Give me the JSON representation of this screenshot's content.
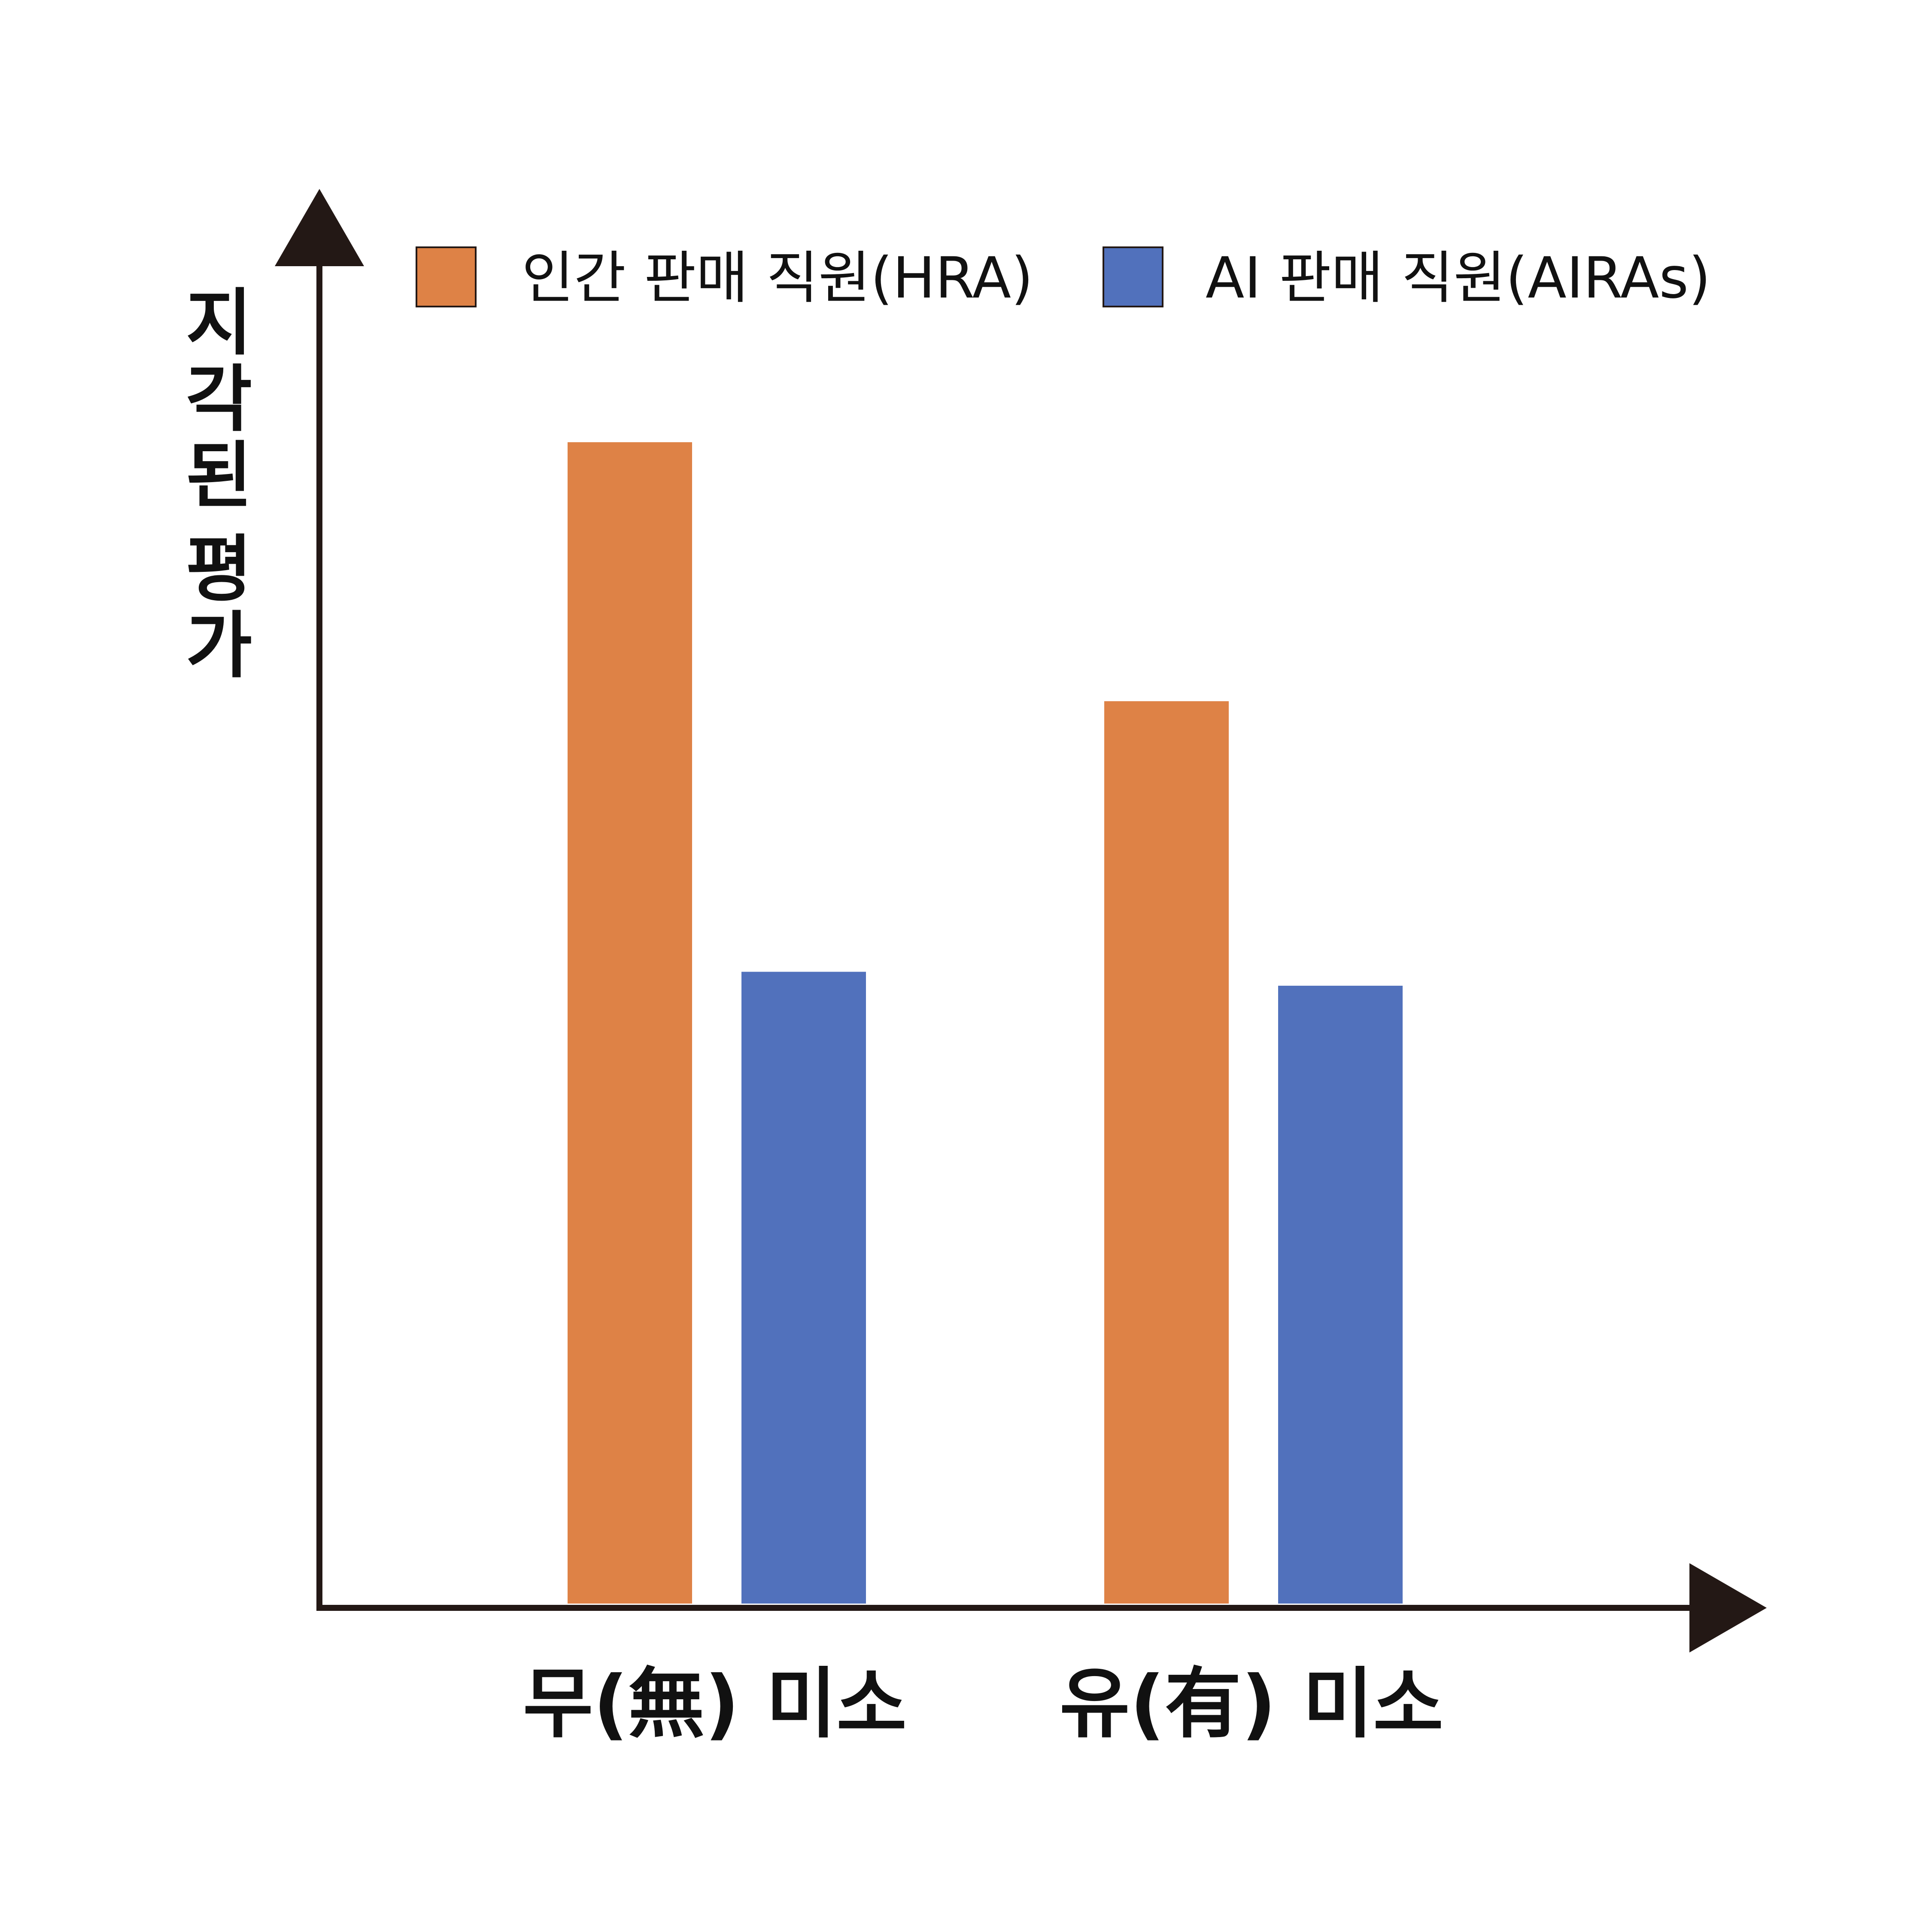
{
  "chart_data": {
    "type": "bar",
    "title": "",
    "ylabel": "지각된 평가",
    "xlabel": "",
    "categories": [
      "무(無) 미소",
      "유(有) 미소"
    ],
    "series": [
      {
        "name": "인간 판매 직원(HRA)",
        "color": "#DE8246",
        "values": [
          100,
          77.7
        ]
      },
      {
        "name": "AI 판매 직원(AIRAs)",
        "color": "#5171BC",
        "values": [
          54.4,
          53.2
        ]
      }
    ],
    "ylim": [
      0,
      110
    ],
    "grid": false,
    "legend": "top",
    "axis_color": "#231815"
  }
}
